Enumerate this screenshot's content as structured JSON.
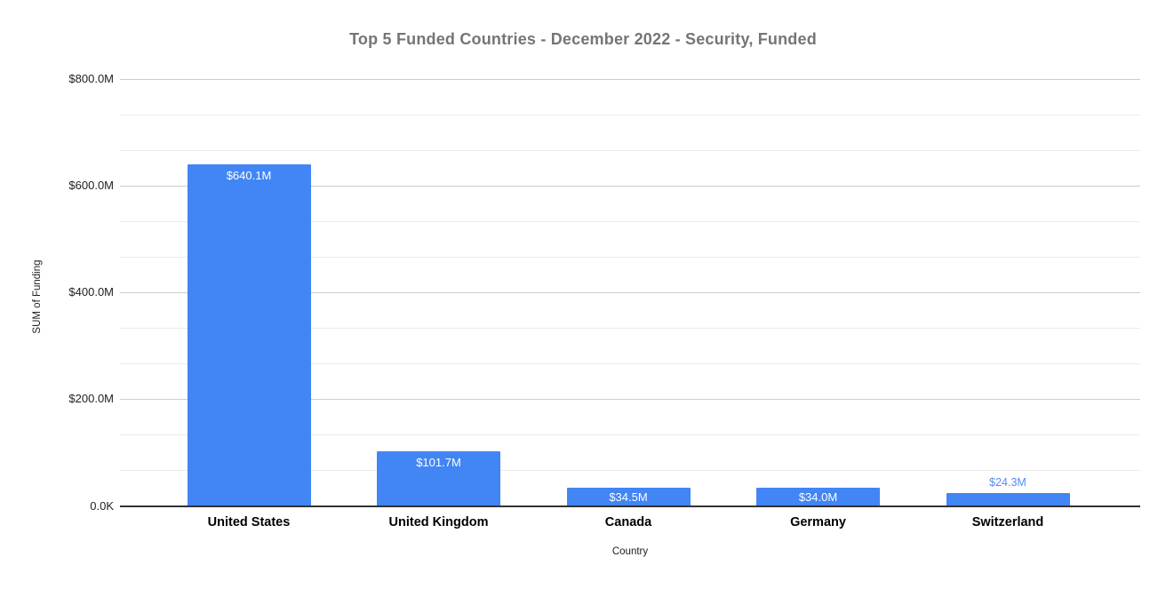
{
  "chart_data": {
    "type": "bar",
    "title": "Top 5 Funded Countries - December 2022 - Security, Funded",
    "xlabel": "Country",
    "ylabel": "SUM of Funding",
    "value_unit": "USD millions",
    "categories": [
      "United States",
      "United Kingdom",
      "Canada",
      "Germany",
      "Switzerland"
    ],
    "values": [
      640.1,
      101.7,
      34.5,
      34.0,
      24.3
    ],
    "data_labels": [
      "$640.1M",
      "$101.7M",
      "$34.5M",
      "$34.0M",
      "$24.3M"
    ],
    "label_placement": [
      "inside",
      "inside",
      "inside",
      "inside",
      "outside"
    ],
    "y_ticks": [
      {
        "value": 0,
        "label": "0.0K"
      },
      {
        "value": 200,
        "label": "$200.0M"
      },
      {
        "value": 400,
        "label": "$400.0M"
      },
      {
        "value": 600,
        "label": "$600.0M"
      },
      {
        "value": 800,
        "label": "$800.0M"
      }
    ],
    "ylim": [
      0,
      800
    ],
    "minor_gridline_divisions": 3,
    "grid": true,
    "legend": "none",
    "colors": {
      "bar": "#4285f4",
      "title": "#757575",
      "grid_major": "#cccccc",
      "grid_minor": "#ebebeb",
      "axis_line": "#333333",
      "label_inside": "#ffffff",
      "label_outside": "#548bf4"
    }
  }
}
